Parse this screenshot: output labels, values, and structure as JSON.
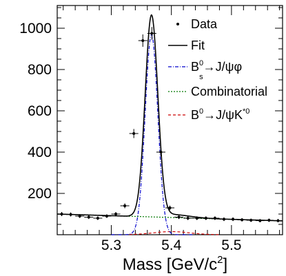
{
  "chart_data": {
    "type": "line",
    "xlabel": {
      "base": "Mass [GeV/c",
      "sup": "2",
      "tail": "]"
    },
    "xlim": [
      5.21,
      5.585
    ],
    "ylim": [
      0,
      1110
    ],
    "x_ticks": [
      5.3,
      5.4,
      5.5
    ],
    "x_tick_labels": [
      "5.3",
      "5.4",
      "5.5"
    ],
    "y_ticks": [
      200,
      400,
      600,
      800,
      1000
    ],
    "y_tick_labels": [
      "200",
      "400",
      "600",
      "800",
      "1000"
    ],
    "legend_position": "top-right",
    "legend": [
      {
        "key": "data",
        "style": "marker",
        "color": "#000000",
        "label": [
          {
            "t": "Data"
          }
        ]
      },
      {
        "key": "fit",
        "style": "solid",
        "color": "#000000",
        "label": [
          {
            "t": "Fit"
          }
        ]
      },
      {
        "key": "bs",
        "style": "dashdot",
        "color": "#0000cc",
        "label": [
          {
            "t": "B"
          },
          {
            "t": "0",
            "sup": true
          },
          {
            "t": "s",
            "sub": true
          },
          {
            "t": "→J/ψφ"
          }
        ]
      },
      {
        "key": "comb",
        "style": "dotted",
        "color": "#007700",
        "label": [
          {
            "t": "Combinatorial"
          }
        ]
      },
      {
        "key": "bd",
        "style": "dashed",
        "color": "#cc0000",
        "label": [
          {
            "t": "B"
          },
          {
            "t": "0",
            "sup": true
          },
          {
            "t": "→J/ψK"
          },
          {
            "t": "*0",
            "sup": true
          }
        ]
      }
    ],
    "data_points": {
      "x": [
        5.2175,
        5.2325,
        5.2475,
        5.2625,
        5.2775,
        5.2925,
        5.3075,
        5.3225,
        5.3375,
        5.3525,
        5.3675,
        5.3825,
        5.3975,
        5.4125,
        5.4275,
        5.4425,
        5.4575,
        5.4725,
        5.4875,
        5.5025,
        5.5175,
        5.5325,
        5.5475,
        5.5625,
        5.5775
      ],
      "y": [
        100,
        98,
        90,
        85,
        80,
        90,
        100,
        140,
        490,
        940,
        975,
        400,
        130,
        85,
        80,
        80,
        80,
        80,
        75,
        75,
        72,
        70,
        68,
        70,
        68
      ],
      "xerr": 0.0075,
      "yerr": [
        10,
        10,
        9,
        9,
        9,
        9,
        10,
        12,
        22,
        30,
        31,
        20,
        11,
        9,
        9,
        9,
        9,
        9,
        9,
        9,
        8,
        8,
        8,
        8,
        8
      ]
    },
    "fit": {
      "combinatorial": {
        "a": 100,
        "b": -88,
        "x0": 5.21
      },
      "bs_signal": {
        "amplitude": 970,
        "mean": 5.3669,
        "sigma": 0.0105
      },
      "bd_peak": {
        "amplitude": 15,
        "mean": 5.4,
        "sigma": 0.03,
        "xmin": 5.33,
        "xmax": 5.48
      }
    }
  }
}
